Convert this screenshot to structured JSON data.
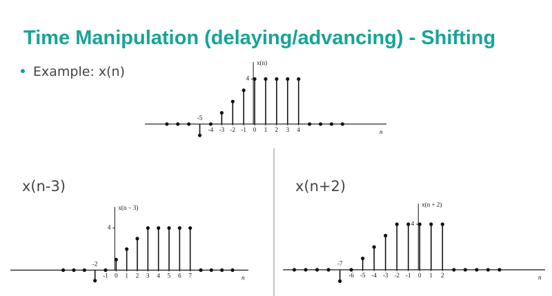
{
  "title": "Time Manipulation (delaying/advancing) - Shifting",
  "bullet": "Example: x(n)",
  "chart_data": [
    {
      "type": "stem",
      "title": "x(n)",
      "ylabel": "x(n)",
      "xlabel": "n",
      "x": [
        -8,
        -7,
        -6,
        -5,
        -4,
        -3,
        -2,
        -1,
        0,
        1,
        2,
        3,
        4,
        5,
        6,
        7,
        8
      ],
      "values": [
        0,
        0,
        0,
        -1,
        0,
        1,
        2,
        3,
        4,
        4,
        4,
        4,
        4,
        0,
        0,
        0,
        0
      ],
      "xlim": [
        -10,
        12
      ],
      "ylim": [
        -2,
        5.5
      ],
      "xticks": [
        -5,
        -4,
        -3,
        -2,
        -1,
        0,
        1,
        2,
        3,
        4
      ],
      "yticks": [
        4
      ],
      "color": "#111111"
    },
    {
      "type": "stem",
      "title": "x(n-3)",
      "ylabel": "x(n − 3)",
      "xlabel": "n",
      "x": [
        -5,
        -4,
        -3,
        -2,
        -1,
        0,
        1,
        2,
        3,
        4,
        5,
        6,
        7,
        8,
        9,
        10,
        11
      ],
      "values": [
        0,
        0,
        0,
        -1,
        0,
        1,
        2,
        3,
        4,
        4,
        4,
        4,
        4,
        0,
        0,
        0,
        0
      ],
      "xlim": [
        -10,
        12.5
      ],
      "ylim": [
        -2,
        6
      ],
      "xticks": [
        -2,
        -1,
        0,
        1,
        2,
        3,
        4,
        5,
        6,
        7
      ],
      "yticks": [
        4
      ],
      "color": "#111111"
    },
    {
      "type": "stem",
      "title": "x(n+2)",
      "ylabel": "x(n + 2)",
      "xlabel": "n",
      "x": [
        -11,
        -10,
        -9,
        -8,
        -7,
        -6,
        -5,
        -4,
        -3,
        -2,
        -1,
        0,
        1,
        2,
        3,
        4,
        5,
        6,
        7
      ],
      "values": [
        0,
        0,
        0,
        0,
        -1,
        0,
        1,
        2,
        3,
        4,
        4,
        4,
        4,
        4,
        0,
        0,
        0,
        0,
        0
      ],
      "xlim": [
        -12,
        11
      ],
      "ylim": [
        -2,
        5.8
      ],
      "xticks": [
        -7,
        -6,
        -5,
        -4,
        -3,
        -2,
        -1,
        0,
        1,
        2
      ],
      "yticks": [
        4
      ],
      "color": "#111111"
    }
  ]
}
